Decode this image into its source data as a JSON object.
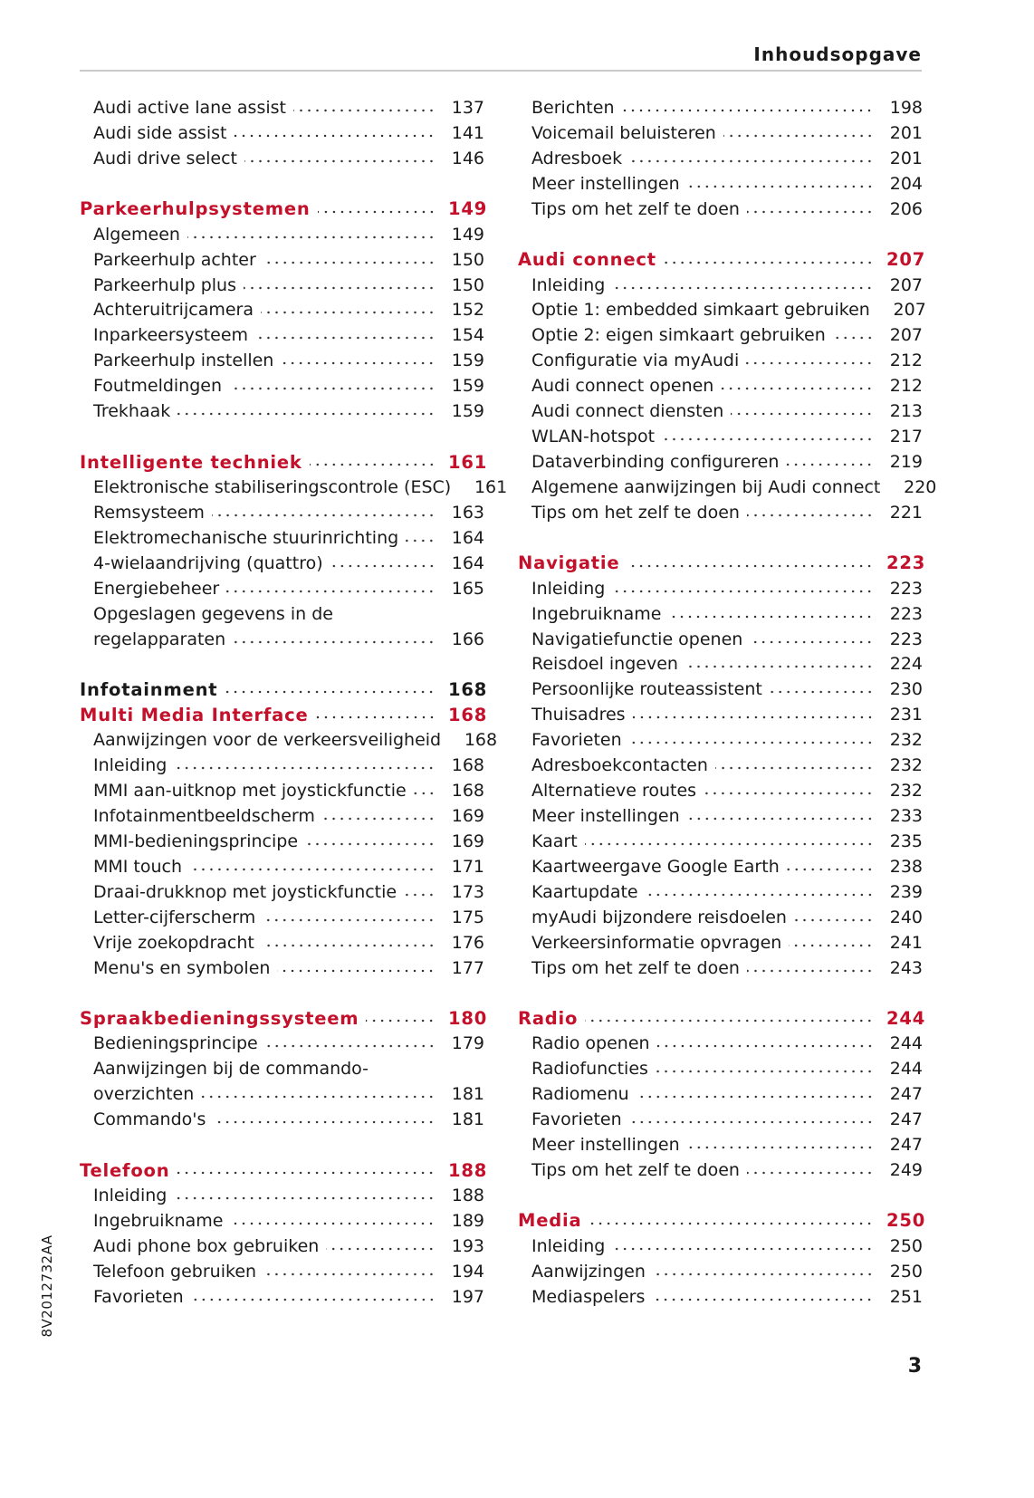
{
  "header": {
    "title": "Inhoudsopgave"
  },
  "side_code": "8V2012732AA",
  "page_number": "3",
  "columns": [
    {
      "groups": [
        {
          "headings": [],
          "items": [
            {
              "text": "Audi active lane assist",
              "page": "137"
            },
            {
              "text": "Audi side assist",
              "page": "141"
            },
            {
              "text": "Audi drive select",
              "page": "146"
            }
          ]
        },
        {
          "headings": [
            {
              "text": "Parkeerhulpsystemen",
              "page": "149",
              "color": "#c4102b"
            }
          ],
          "items": [
            {
              "text": "Algemeen",
              "page": "149"
            },
            {
              "text": "Parkeerhulp achter",
              "page": "150"
            },
            {
              "text": "Parkeerhulp plus",
              "page": "150"
            },
            {
              "text": "Achteruitrijcamera",
              "page": "152"
            },
            {
              "text": "Inparkeersysteem",
              "page": "154"
            },
            {
              "text": "Parkeerhulp instellen",
              "page": "159"
            },
            {
              "text": "Foutmeldingen",
              "page": "159"
            },
            {
              "text": "Trekhaak",
              "page": "159"
            }
          ]
        },
        {
          "headings": [
            {
              "text": "Intelligente techniek",
              "page": "161",
              "color": "#c4102b"
            }
          ],
          "items": [
            {
              "text": "Elektronische stabiliseringscontrole (ESC)",
              "page": "161"
            },
            {
              "text": "Remsysteem",
              "page": "163"
            },
            {
              "text": "Elektromechanische stuurinrichting",
              "page": "164"
            },
            {
              "text": "4-wielaandrijving (quattro)",
              "page": "164"
            },
            {
              "text": "Energiebeheer",
              "page": "165"
            },
            {
              "lines": [
                "Opgeslagen gegevens in de",
                "regelapparaten"
              ],
              "page": "166"
            }
          ]
        },
        {
          "headings": [
            {
              "text": "Infotainment",
              "page": "168",
              "color": "#1a1a1a"
            },
            {
              "text": "Multi Media Interface",
              "page": "168",
              "color": "#c4102b"
            }
          ],
          "items": [
            {
              "text": "Aanwijzingen voor de verkeersveiligheid",
              "page": "168"
            },
            {
              "text": "Inleiding",
              "page": "168"
            },
            {
              "text": "MMI aan-uitknop met joystickfunctie",
              "page": "168"
            },
            {
              "text": "Infotainmentbeeldscherm",
              "page": "169"
            },
            {
              "text": "MMI-bedieningsprincipe",
              "page": "169"
            },
            {
              "text": "MMI touch",
              "page": "171"
            },
            {
              "text": "Draai-drukknop met joystickfunctie",
              "page": "173"
            },
            {
              "text": "Letter-cijferscherm",
              "page": "175"
            },
            {
              "text": "Vrije zoekopdracht",
              "page": "176"
            },
            {
              "text": "Menu's en symbolen",
              "page": "177"
            }
          ]
        },
        {
          "headings": [
            {
              "text": "Spraakbedieningssysteem",
              "page": "180",
              "color": "#c4102b"
            }
          ],
          "items": [
            {
              "text": "Bedieningsprincipe",
              "page": "179"
            },
            {
              "lines": [
                "Aanwijzingen bij de commando-",
                "overzichten"
              ],
              "page": "181"
            },
            {
              "text": "Commando's",
              "page": "181"
            }
          ]
        },
        {
          "headings": [
            {
              "text": "Telefoon",
              "page": "188",
              "color": "#c4102b"
            }
          ],
          "items": [
            {
              "text": "Inleiding",
              "page": "188"
            },
            {
              "text": "Ingebruikname",
              "page": "189"
            },
            {
              "text": "Audi phone box gebruiken",
              "page": "193"
            },
            {
              "text": "Telefoon gebruiken",
              "page": "194"
            },
            {
              "text": "Favorieten",
              "page": "197"
            }
          ]
        }
      ]
    },
    {
      "groups": [
        {
          "headings": [],
          "items": [
            {
              "text": "Berichten",
              "page": "198"
            },
            {
              "text": "Voicemail beluisteren",
              "page": "201"
            },
            {
              "text": "Adresboek",
              "page": "201"
            },
            {
              "text": "Meer instellingen",
              "page": "204"
            },
            {
              "text": "Tips om het zelf te doen",
              "page": "206"
            }
          ]
        },
        {
          "headings": [
            {
              "text": "Audi connect",
              "page": "207",
              "color": "#c4102b"
            }
          ],
          "items": [
            {
              "text": "Inleiding",
              "page": "207"
            },
            {
              "text": "Optie 1: embedded simkaart gebruiken",
              "page": "207"
            },
            {
              "text": "Optie 2: eigen simkaart gebruiken",
              "page": "207"
            },
            {
              "text": "Configuratie via myAudi",
              "page": "212"
            },
            {
              "text": "Audi connect openen",
              "page": "212"
            },
            {
              "text": "Audi connect diensten",
              "page": "213"
            },
            {
              "text": "WLAN-hotspot",
              "page": "217"
            },
            {
              "text": "Dataverbinding configureren",
              "page": "219"
            },
            {
              "text": "Algemene aanwijzingen bij Audi connect",
              "page": "220"
            },
            {
              "text": "Tips om het zelf te doen",
              "page": "221"
            }
          ]
        },
        {
          "headings": [
            {
              "text": "Navigatie",
              "page": "223",
              "color": "#c4102b"
            }
          ],
          "items": [
            {
              "text": "Inleiding",
              "page": "223"
            },
            {
              "text": "Ingebruikname",
              "page": "223"
            },
            {
              "text": "Navigatiefunctie openen",
              "page": "223"
            },
            {
              "text": "Reisdoel ingeven",
              "page": "224"
            },
            {
              "text": "Persoonlijke routeassistent",
              "page": "230"
            },
            {
              "text": "Thuisadres",
              "page": "231"
            },
            {
              "text": "Favorieten",
              "page": "232"
            },
            {
              "text": "Adresboekcontacten",
              "page": "232"
            },
            {
              "text": "Alternatieve routes",
              "page": "232"
            },
            {
              "text": "Meer instellingen",
              "page": "233"
            },
            {
              "text": "Kaart",
              "page": "235"
            },
            {
              "text": "Kaartweergave Google Earth",
              "page": "238"
            },
            {
              "text": "Kaartupdate",
              "page": "239"
            },
            {
              "text": "myAudi bijzondere reisdoelen",
              "page": "240"
            },
            {
              "text": "Verkeersinformatie opvragen",
              "page": "241"
            },
            {
              "text": "Tips om het zelf te doen",
              "page": "243"
            }
          ]
        },
        {
          "headings": [
            {
              "text": "Radio",
              "page": "244",
              "color": "#c4102b"
            }
          ],
          "items": [
            {
              "text": "Radio openen",
              "page": "244"
            },
            {
              "text": "Radiofuncties",
              "page": "244"
            },
            {
              "text": "Radiomenu",
              "page": "247"
            },
            {
              "text": "Favorieten",
              "page": "247"
            },
            {
              "text": "Meer instellingen",
              "page": "247"
            },
            {
              "text": "Tips om het zelf te doen",
              "page": "249"
            }
          ]
        },
        {
          "headings": [
            {
              "text": "Media",
              "page": "250",
              "color": "#c4102b"
            }
          ],
          "items": [
            {
              "text": "Inleiding",
              "page": "250"
            },
            {
              "text": "Aanwijzingen",
              "page": "250"
            },
            {
              "text": "Mediaspelers",
              "page": "251"
            }
          ]
        }
      ]
    }
  ]
}
